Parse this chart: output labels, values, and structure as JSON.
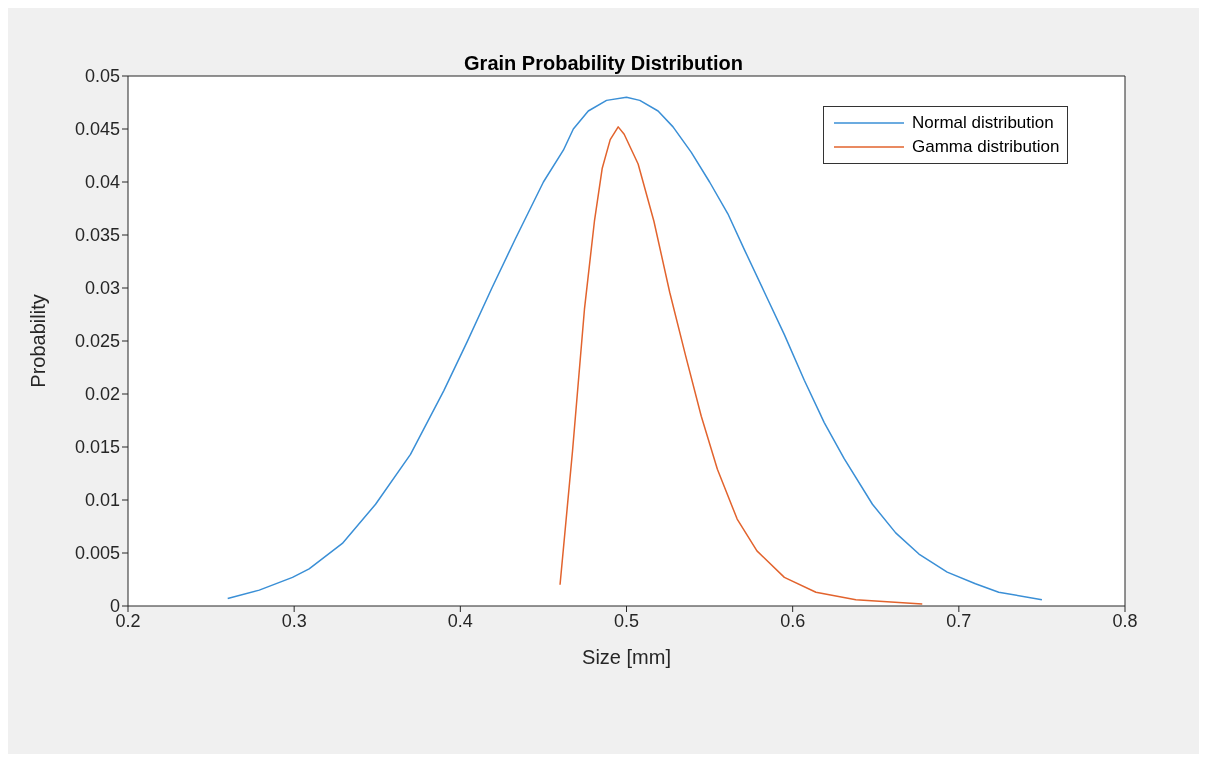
{
  "chart_data": {
    "type": "line",
    "title": "Grain Probability Distribution",
    "xlabel": "Size [mm]",
    "ylabel": "Probability",
    "xlim": [
      0.2,
      0.8
    ],
    "xticks": [
      0.2,
      0.3,
      0.4,
      0.5,
      0.6,
      0.7,
      0.8
    ],
    "ylim": [
      0,
      0.05
    ],
    "yticks": [
      0,
      0.005,
      0.01,
      0.015,
      0.02,
      0.025,
      0.03,
      0.035,
      0.04,
      0.045,
      0.05
    ],
    "legend": "top right",
    "grid": false,
    "marker": "none",
    "line_style": "solid",
    "series": [
      {
        "name": "Normal distribution",
        "color": "#3a8fd6",
        "x": [
          0.26,
          0.279,
          0.299,
          0.309,
          0.329,
          0.349,
          0.37,
          0.39,
          0.404,
          0.419,
          0.433,
          0.45,
          0.462,
          0.468,
          0.477,
          0.488,
          0.5,
          0.508,
          0.519,
          0.528,
          0.539,
          0.55,
          0.561,
          0.571,
          0.583,
          0.595,
          0.607,
          0.619,
          0.631,
          0.648,
          0.662,
          0.676,
          0.693,
          0.71,
          0.724,
          0.75
        ],
        "values": [
          0.0007,
          0.0015,
          0.0027,
          0.0035,
          0.0059,
          0.0096,
          0.0143,
          0.0203,
          0.0249,
          0.03,
          0.0346,
          0.04,
          0.043,
          0.045,
          0.0467,
          0.0477,
          0.048,
          0.0477,
          0.0467,
          0.0452,
          0.0428,
          0.04,
          0.037,
          0.0336,
          0.0296,
          0.0256,
          0.0213,
          0.0173,
          0.0139,
          0.0096,
          0.0069,
          0.0049,
          0.0032,
          0.0021,
          0.0013,
          0.0006
        ]
      },
      {
        "name": "Gamma distribution",
        "color": "#e2632d",
        "x": [
          0.46,
          0.4675,
          0.4747,
          0.4807,
          0.4854,
          0.4902,
          0.495,
          0.4986,
          0.507,
          0.5165,
          0.526,
          0.5356,
          0.545,
          0.5547,
          0.5666,
          0.5785,
          0.595,
          0.614,
          0.638,
          0.678
        ],
        "values": [
          0.002,
          0.0146,
          0.028,
          0.0363,
          0.0413,
          0.044,
          0.0452,
          0.0445,
          0.0417,
          0.0363,
          0.0296,
          0.0236,
          0.0179,
          0.0129,
          0.0082,
          0.0052,
          0.0027,
          0.0013,
          0.0006,
          0.0002
        ]
      }
    ]
  }
}
